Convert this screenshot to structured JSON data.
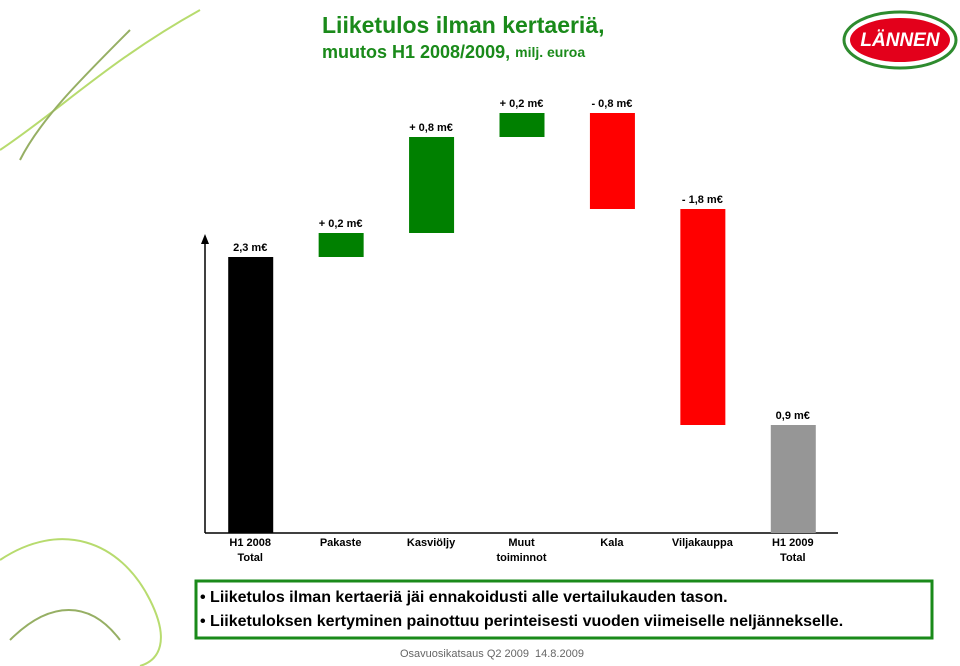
{
  "header": {
    "title_line1": "Liiketulos ilman kertaeriä,",
    "title_line2": "muutos H1 2008/2009,",
    "unit": "milj. euroa",
    "logo": "LÄNNEN"
  },
  "chart_data": {
    "type": "waterfall",
    "categories": [
      [
        "H1 2008",
        "Total"
      ],
      [
        "Pakaste"
      ],
      [
        "Kasviöljy"
      ],
      [
        "Muut",
        "toiminnot"
      ],
      [
        "Kala"
      ],
      [
        "Viljakauppa"
      ],
      [
        "H1 2009",
        "Total"
      ]
    ],
    "values": [
      2.3,
      0.2,
      0.8,
      0.2,
      -0.8,
      -1.8,
      0.9
    ],
    "value_labels": [
      "2,3 m€",
      "+ 0,2 m€",
      "+ 0,8 m€",
      "+ 0,2 m€",
      "- 0,8 m€",
      "- 1,8 m€",
      "0,9 m€"
    ],
    "colors": [
      "#000000",
      "#008000",
      "#008000",
      "#008000",
      "#ff0000",
      "#ff0000",
      "#969696"
    ],
    "ylim": [
      0,
      3.9
    ]
  },
  "bullets": [
    "Liiketulos ilman kertaeriä jäi ennakoidusti alle vertailukauden tason.",
    "Liiketuloksen kertyminen painottuu perinteisesti vuoden viimeiselle neljännekselle."
  ],
  "footer": {
    "left": "Osavuosikatsaus Q2 2009",
    "right": "14.8.2009"
  }
}
